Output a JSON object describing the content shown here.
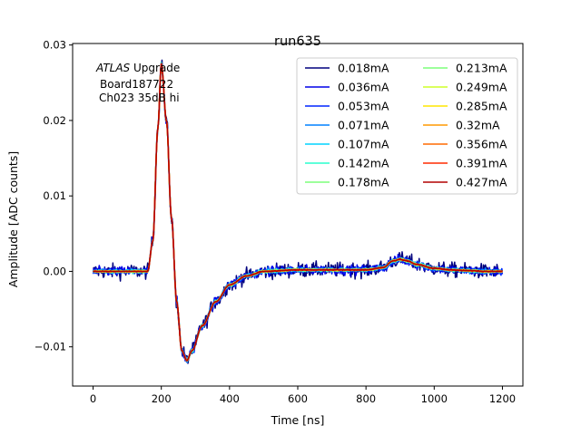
{
  "chart_data": {
    "type": "line",
    "title": "run635",
    "xlabel": "Time [ns]",
    "ylabel": "Amplitude [ADC counts]",
    "xlim": [
      -60,
      1260
    ],
    "ylim": [
      -0.0152,
      0.0302
    ],
    "xticks": [
      0,
      200,
      400,
      600,
      800,
      1000,
      1200
    ],
    "xtick_labels": [
      "0",
      "200",
      "400",
      "600",
      "800",
      "1000",
      "1200"
    ],
    "yticks": [
      -0.01,
      0.0,
      0.01,
      0.02,
      0.03
    ],
    "ytick_labels": [
      "−0.01",
      "0.00",
      "0.01",
      "0.02",
      "0.03"
    ],
    "annotation": {
      "italic": "ATLAS",
      "rest": " Upgrade",
      "line2": "Board187722",
      "line3": "Ch023 35dB hi"
    },
    "legend": {
      "location": "upper right",
      "columns": 2
    },
    "pulse_shape": {
      "x": [
        0,
        160,
        175,
        190,
        200,
        215,
        230,
        245,
        260,
        275,
        290,
        320,
        360,
        400,
        450,
        500,
        600,
        700,
        800,
        850,
        880,
        900,
        920,
        950,
        1000,
        1050,
        1100,
        1150,
        1200
      ],
      "y": [
        0.0,
        0.0,
        0.004,
        0.019,
        0.0275,
        0.02,
        0.007,
        -0.004,
        -0.0105,
        -0.0118,
        -0.0105,
        -0.0072,
        -0.004,
        -0.0018,
        -0.0006,
        0.0,
        0.0002,
        0.0002,
        0.0002,
        0.0005,
        0.0014,
        0.0016,
        0.0014,
        0.0009,
        0.0004,
        0.0002,
        0.0001,
        0.0,
        0.0
      ]
    },
    "series": [
      {
        "name": "0.018mA",
        "color": "#00007f",
        "noise": 0.0007
      },
      {
        "name": "0.036mA",
        "color": "#0000e9",
        "noise": 0.00045
      },
      {
        "name": "0.053mA",
        "color": "#0025ff",
        "noise": 0.0003
      },
      {
        "name": "0.071mA",
        "color": "#0080ff",
        "noise": 0.00024
      },
      {
        "name": "0.107mA",
        "color": "#00d4ff",
        "noise": 0.00018
      },
      {
        "name": "0.142mA",
        "color": "#29ffce",
        "noise": 0.00015
      },
      {
        "name": "0.178mA",
        "color": "#7dff7a",
        "noise": 0.00012
      },
      {
        "name": "0.213mA",
        "color": "#7dff7a",
        "noise": 0.0001
      },
      {
        "name": "0.249mA",
        "color": "#ceff29",
        "noise": 9e-05
      },
      {
        "name": "0.285mA",
        "color": "#ffe600",
        "noise": 8e-05
      },
      {
        "name": "0.32mA",
        "color": "#ff9900",
        "noise": 7e-05
      },
      {
        "name": "0.356mA",
        "color": "#ff6a00",
        "noise": 6e-05
      },
      {
        "name": "0.391mA",
        "color": "#ff2a00",
        "noise": 5e-05
      },
      {
        "name": "0.427mA",
        "color": "#b20000",
        "noise": 4e-05
      }
    ]
  }
}
